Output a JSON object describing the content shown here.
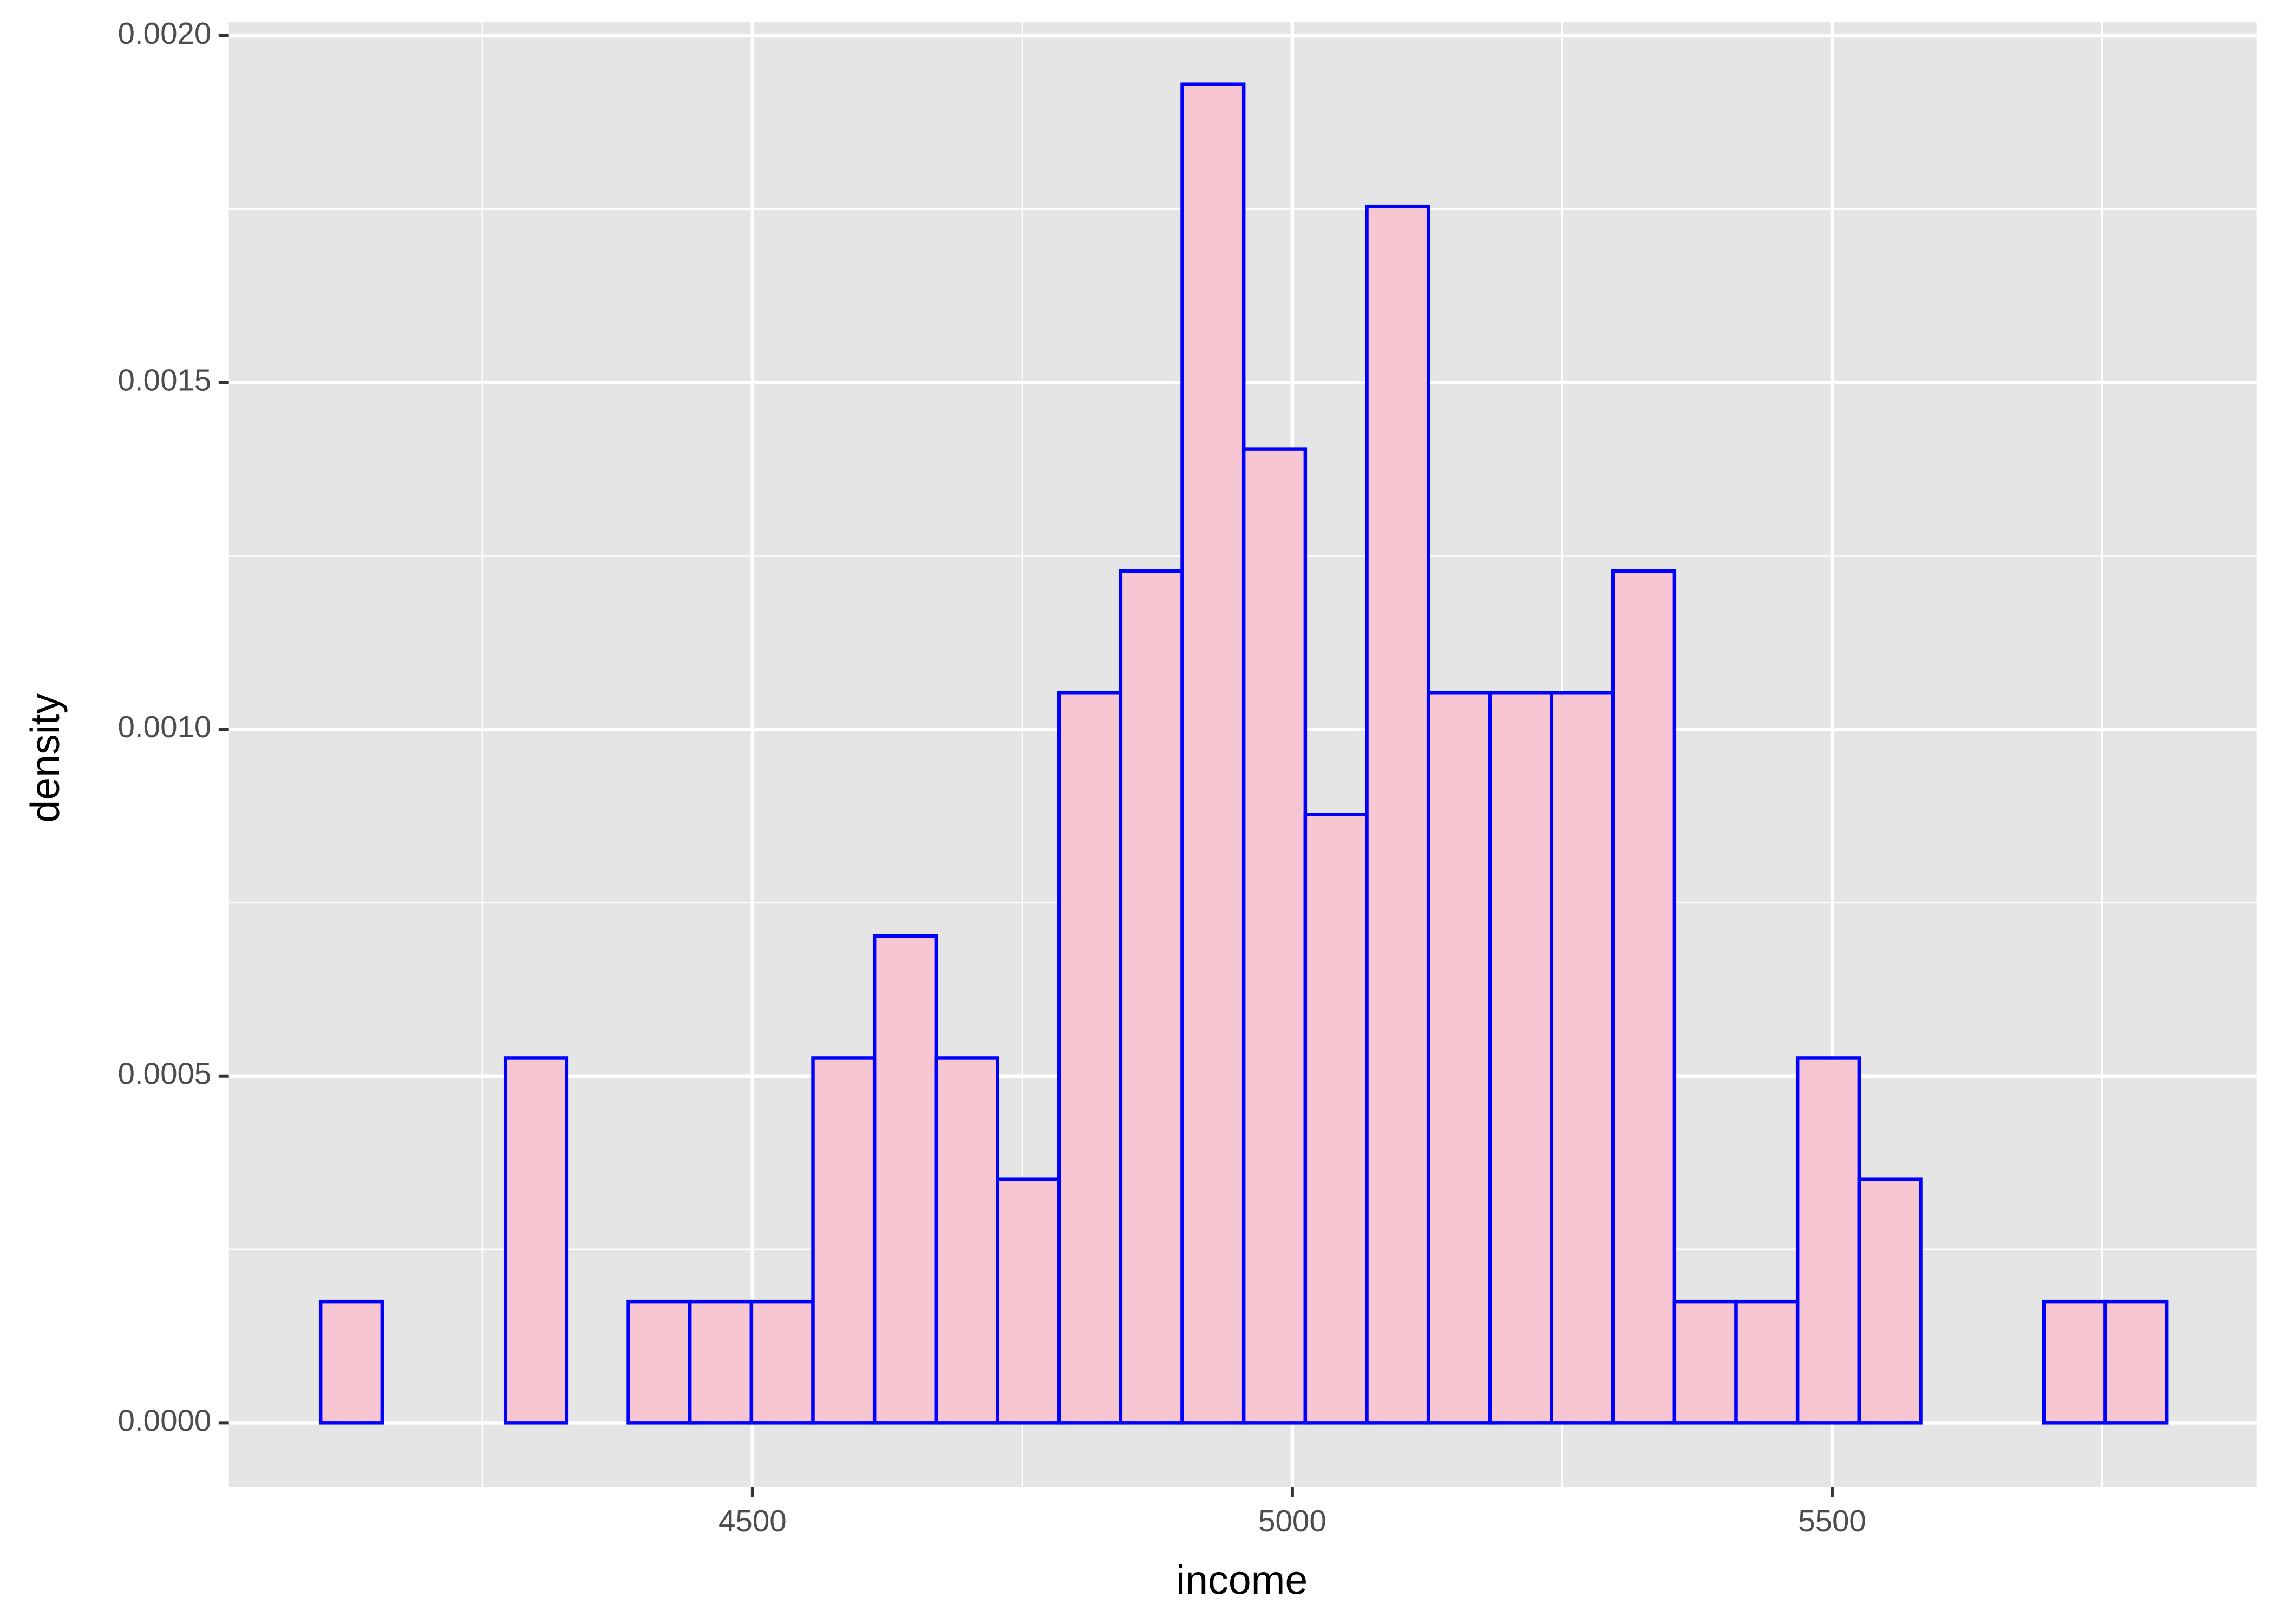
{
  "chart_data": {
    "type": "histogram",
    "x_label": "income",
    "y_label": "density",
    "bins": [
      4100,
      4157,
      4214,
      4271,
      4328,
      4385,
      4442,
      4499,
      4556,
      4613,
      4670,
      4727,
      4784,
      4841,
      4898,
      4955,
      5012,
      5069,
      5126,
      5183,
      5240,
      5297,
      5354,
      5411,
      5468,
      5525,
      5582,
      5639,
      5696,
      5753,
      5810
    ],
    "values": [
      0.000175,
      0,
      0,
      0.000526,
      0,
      0.000175,
      0.000175,
      0.000175,
      0.000526,
      0.000702,
      0.000526,
      0.000351,
      0.001053,
      0.001228,
      0.00193,
      0.001404,
      0.000877,
      0.001754,
      0.001053,
      0.001053,
      0.001053,
      0.001228,
      0.000175,
      0.000175,
      0.000526,
      0.000351,
      0,
      0,
      0.000175,
      0.000175
    ],
    "color": "#f6c6d3",
    "edge_color": "#0000ff",
    "xlim": [
      4015,
      5893
    ],
    "ylim": [
      -9.25e-05,
      0.00202
    ],
    "xticks": [
      4500,
      5000,
      5500
    ],
    "yticks": [
      {
        "value": 0,
        "label": "0.0000"
      },
      {
        "value": 0.0005,
        "label": "0.0005"
      },
      {
        "value": 0.001,
        "label": "0.0010"
      },
      {
        "value": 0.0015,
        "label": "0.0015"
      },
      {
        "value": 0.002,
        "label": "0.0020"
      }
    ],
    "grid": true
  }
}
